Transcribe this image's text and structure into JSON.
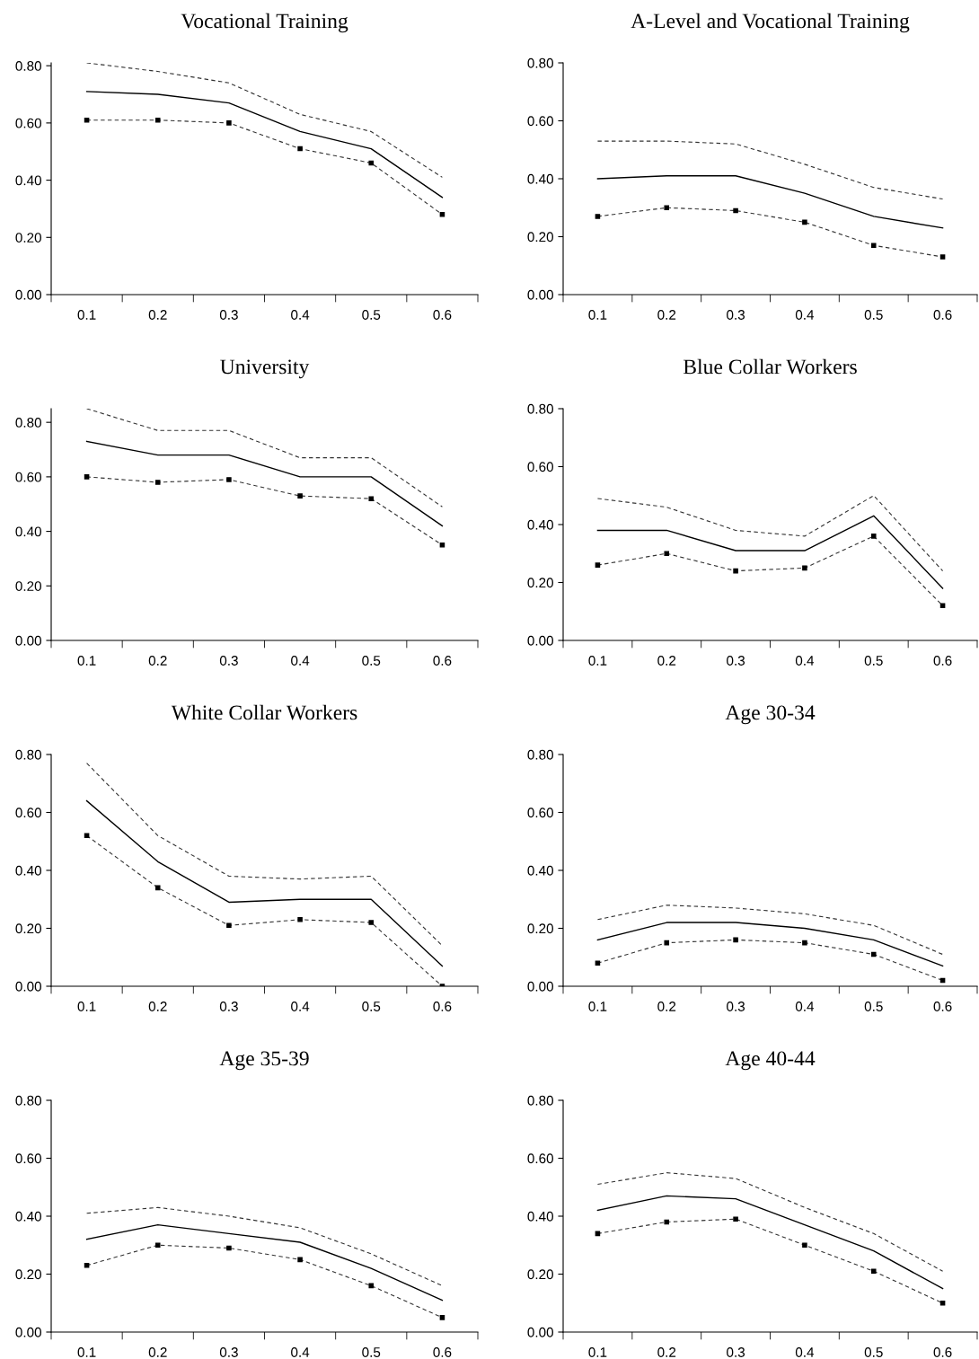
{
  "chart_data": [
    {
      "type": "line",
      "title": "Vocational Training",
      "categories": [
        "0.1",
        "0.2",
        "0.3",
        "0.4",
        "0.5",
        "0.6"
      ],
      "ylim": [
        0,
        0.81
      ],
      "yticks": [
        {
          "value": 0,
          "label": "0.00"
        },
        {
          "value": 0.2,
          "label": "0.20"
        },
        {
          "value": 0.4,
          "label": "0.40"
        },
        {
          "value": 0.6,
          "label": "0.60"
        },
        {
          "value": 0.8,
          "label": "0.80"
        }
      ],
      "grid": false,
      "series": [
        {
          "color": "#333333",
          "line_style": "dashed",
          "marker": "none",
          "values": [
            0.81,
            0.78,
            0.74,
            0.63,
            0.57,
            0.41
          ]
        },
        {
          "color": "#000000",
          "line_style": "solid",
          "marker": "none",
          "values": [
            0.71,
            0.7,
            0.67,
            0.57,
            0.51,
            0.34
          ]
        },
        {
          "color": "#333333",
          "line_style": "dashed",
          "marker": "square",
          "values": [
            0.61,
            0.61,
            0.6,
            0.51,
            0.46,
            0.28
          ]
        }
      ]
    },
    {
      "type": "line",
      "title": "A-Level and Vocational Training",
      "categories": [
        "0.1",
        "0.2",
        "0.3",
        "0.4",
        "0.5",
        "0.6"
      ],
      "ylim": [
        0,
        0.8
      ],
      "yticks": [
        {
          "value": 0,
          "label": "0.00"
        },
        {
          "value": 0.2,
          "label": "0.20"
        },
        {
          "value": 0.4,
          "label": "0.40"
        },
        {
          "value": 0.6,
          "label": "0.60"
        },
        {
          "value": 0.8,
          "label": "0.80"
        }
      ],
      "grid": false,
      "series": [
        {
          "color": "#333333",
          "line_style": "dashed",
          "marker": "none",
          "values": [
            0.53,
            0.53,
            0.52,
            0.45,
            0.37,
            0.33
          ]
        },
        {
          "color": "#000000",
          "line_style": "solid",
          "marker": "none",
          "values": [
            0.4,
            0.41,
            0.41,
            0.35,
            0.27,
            0.23
          ]
        },
        {
          "color": "#333333",
          "line_style": "dashed",
          "marker": "square",
          "values": [
            0.27,
            0.3,
            0.29,
            0.25,
            0.17,
            0.13
          ]
        }
      ]
    },
    {
      "type": "line",
      "title": "University",
      "categories": [
        "0.1",
        "0.2",
        "0.3",
        "0.4",
        "0.5",
        "0.6"
      ],
      "ylim": [
        0,
        0.85
      ],
      "yticks": [
        {
          "value": 0,
          "label": "0.00"
        },
        {
          "value": 0.2,
          "label": "0.20"
        },
        {
          "value": 0.4,
          "label": "0.40"
        },
        {
          "value": 0.6,
          "label": "0.60"
        },
        {
          "value": 0.8,
          "label": "0.80"
        }
      ],
      "grid": false,
      "series": [
        {
          "color": "#333333",
          "line_style": "dashed",
          "marker": "none",
          "values": [
            0.85,
            0.77,
            0.77,
            0.67,
            0.67,
            0.49
          ]
        },
        {
          "color": "#000000",
          "line_style": "solid",
          "marker": "none",
          "values": [
            0.73,
            0.68,
            0.68,
            0.6,
            0.6,
            0.42
          ]
        },
        {
          "color": "#333333",
          "line_style": "dashed",
          "marker": "square",
          "values": [
            0.6,
            0.58,
            0.59,
            0.53,
            0.52,
            0.35
          ]
        }
      ]
    },
    {
      "type": "line",
      "title": "Blue Collar Workers",
      "categories": [
        "0.1",
        "0.2",
        "0.3",
        "0.4",
        "0.5",
        "0.6"
      ],
      "ylim": [
        0,
        0.8
      ],
      "yticks": [
        {
          "value": 0,
          "label": "0.00"
        },
        {
          "value": 0.2,
          "label": "0.20"
        },
        {
          "value": 0.4,
          "label": "0.40"
        },
        {
          "value": 0.6,
          "label": "0.60"
        },
        {
          "value": 0.8,
          "label": "0.80"
        }
      ],
      "grid": false,
      "series": [
        {
          "color": "#333333",
          "line_style": "dashed",
          "marker": "none",
          "values": [
            0.49,
            0.46,
            0.38,
            0.36,
            0.5,
            0.24
          ]
        },
        {
          "color": "#000000",
          "line_style": "solid",
          "marker": "none",
          "values": [
            0.38,
            0.38,
            0.31,
            0.31,
            0.43,
            0.18
          ]
        },
        {
          "color": "#333333",
          "line_style": "dashed",
          "marker": "square",
          "values": [
            0.26,
            0.3,
            0.24,
            0.25,
            0.36,
            0.12
          ]
        }
      ]
    },
    {
      "type": "line",
      "title": "White Collar Workers",
      "categories": [
        "0.1",
        "0.2",
        "0.3",
        "0.4",
        "0.5",
        "0.6"
      ],
      "ylim": [
        0,
        0.8
      ],
      "yticks": [
        {
          "value": 0,
          "label": "0.00"
        },
        {
          "value": 0.2,
          "label": "0.20"
        },
        {
          "value": 0.4,
          "label": "0.40"
        },
        {
          "value": 0.6,
          "label": "0.60"
        },
        {
          "value": 0.8,
          "label": "0.80"
        }
      ],
      "grid": false,
      "series": [
        {
          "color": "#333333",
          "line_style": "dashed",
          "marker": "none",
          "values": [
            0.77,
            0.52,
            0.38,
            0.37,
            0.38,
            0.14
          ]
        },
        {
          "color": "#000000",
          "line_style": "solid",
          "marker": "none",
          "values": [
            0.64,
            0.43,
            0.29,
            0.3,
            0.3,
            0.07
          ]
        },
        {
          "color": "#333333",
          "line_style": "dashed",
          "marker": "square",
          "values": [
            0.52,
            0.34,
            0.21,
            0.23,
            0.22,
            0.0
          ]
        }
      ]
    },
    {
      "type": "line",
      "title": "Age 30-34",
      "categories": [
        "0.1",
        "0.2",
        "0.3",
        "0.4",
        "0.5",
        "0.6"
      ],
      "ylim": [
        0,
        0.8
      ],
      "yticks": [
        {
          "value": 0,
          "label": "0.00"
        },
        {
          "value": 0.2,
          "label": "0.20"
        },
        {
          "value": 0.4,
          "label": "0.40"
        },
        {
          "value": 0.6,
          "label": "0.60"
        },
        {
          "value": 0.8,
          "label": "0.80"
        }
      ],
      "grid": false,
      "series": [
        {
          "color": "#333333",
          "line_style": "dashed",
          "marker": "none",
          "values": [
            0.23,
            0.28,
            0.27,
            0.25,
            0.21,
            0.11
          ]
        },
        {
          "color": "#000000",
          "line_style": "solid",
          "marker": "none",
          "values": [
            0.16,
            0.22,
            0.22,
            0.2,
            0.16,
            0.07
          ]
        },
        {
          "color": "#333333",
          "line_style": "dashed",
          "marker": "square",
          "values": [
            0.08,
            0.15,
            0.16,
            0.15,
            0.11,
            0.02
          ]
        }
      ]
    },
    {
      "type": "line",
      "title": "Age 35-39",
      "categories": [
        "0.1",
        "0.2",
        "0.3",
        "0.4",
        "0.5",
        "0.6"
      ],
      "ylim": [
        0,
        0.8
      ],
      "yticks": [
        {
          "value": 0,
          "label": "0.00"
        },
        {
          "value": 0.2,
          "label": "0.20"
        },
        {
          "value": 0.4,
          "label": "0.40"
        },
        {
          "value": 0.6,
          "label": "0.60"
        },
        {
          "value": 0.8,
          "label": "0.80"
        }
      ],
      "grid": false,
      "series": [
        {
          "color": "#333333",
          "line_style": "dashed",
          "marker": "none",
          "values": [
            0.41,
            0.43,
            0.4,
            0.36,
            0.27,
            0.16
          ]
        },
        {
          "color": "#000000",
          "line_style": "solid",
          "marker": "none",
          "values": [
            0.32,
            0.37,
            0.34,
            0.31,
            0.22,
            0.11
          ]
        },
        {
          "color": "#333333",
          "line_style": "dashed",
          "marker": "square",
          "values": [
            0.23,
            0.3,
            0.29,
            0.25,
            0.16,
            0.05
          ]
        }
      ]
    },
    {
      "type": "line",
      "title": "Age 40-44",
      "categories": [
        "0.1",
        "0.2",
        "0.3",
        "0.4",
        "0.5",
        "0.6"
      ],
      "ylim": [
        0,
        0.8
      ],
      "yticks": [
        {
          "value": 0,
          "label": "0.00"
        },
        {
          "value": 0.2,
          "label": "0.20"
        },
        {
          "value": 0.4,
          "label": "0.40"
        },
        {
          "value": 0.6,
          "label": "0.60"
        },
        {
          "value": 0.8,
          "label": "0.80"
        }
      ],
      "grid": false,
      "series": [
        {
          "color": "#333333",
          "line_style": "dashed",
          "marker": "none",
          "values": [
            0.51,
            0.55,
            0.53,
            0.43,
            0.34,
            0.21
          ]
        },
        {
          "color": "#000000",
          "line_style": "solid",
          "marker": "none",
          "values": [
            0.42,
            0.47,
            0.46,
            0.37,
            0.28,
            0.15
          ]
        },
        {
          "color": "#333333",
          "line_style": "dashed",
          "marker": "square",
          "values": [
            0.34,
            0.38,
            0.39,
            0.3,
            0.21,
            0.1
          ]
        }
      ]
    }
  ]
}
